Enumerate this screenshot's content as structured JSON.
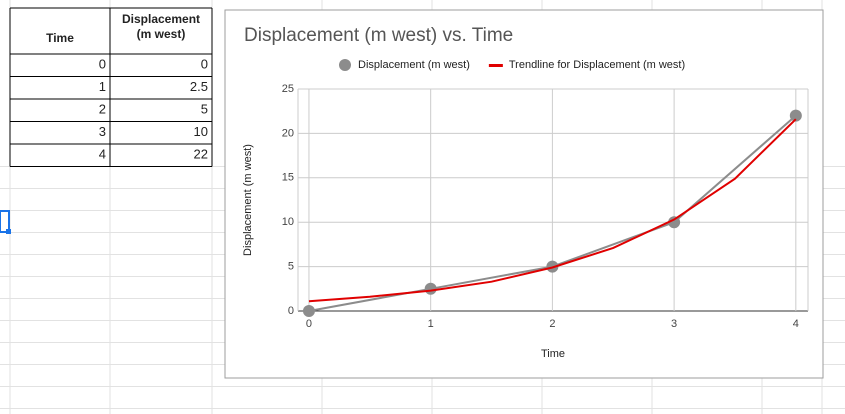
{
  "table": {
    "headers": [
      "Time",
      "Displacement\n(m west)"
    ],
    "rows": [
      [
        0,
        0
      ],
      [
        1,
        2.5
      ],
      [
        2,
        5
      ],
      [
        3,
        10
      ],
      [
        4,
        22
      ]
    ]
  },
  "chart_data": {
    "type": "scatter",
    "title": "Displacement (m west) vs. Time",
    "x_label": "Time",
    "y_label": "Displacement (m west)",
    "x": [
      0,
      1,
      2,
      3,
      4
    ],
    "series": [
      {
        "name": "Displacement (m west)",
        "color": "#8c8c8c",
        "values": [
          0,
          2.5,
          5,
          10,
          22
        ]
      },
      {
        "name": "Trendline for Displacement (m west)",
        "color": "#e00000",
        "x": [
          0,
          0.5,
          1,
          1.5,
          2,
          2.5,
          3,
          3.5,
          4
        ],
        "values": [
          1.1,
          1.6,
          2.3,
          3.3,
          4.9,
          7.1,
          10.3,
          14.9,
          21.6
        ]
      }
    ],
    "xlim": [
      -0.09,
      4.1
    ],
    "ylim": [
      0,
      25
    ],
    "xticks": [
      0,
      1,
      2,
      3,
      4
    ],
    "yticks": [
      0,
      5,
      10,
      15,
      20,
      25
    ],
    "grid": true,
    "legend": "top"
  }
}
